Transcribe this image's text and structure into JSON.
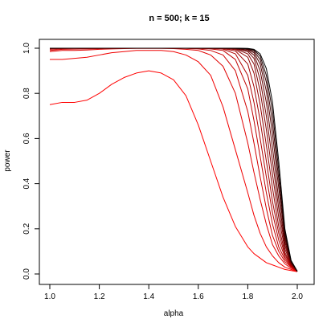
{
  "chart_data": {
    "type": "line",
    "title": "n = 500; k = 15",
    "xlabel": "alpha",
    "ylabel": "power",
    "xlim": [
      1.0,
      2.0
    ],
    "ylim": [
      0.0,
      1.0
    ],
    "xticks": [
      1.0,
      1.2,
      1.4,
      1.6,
      1.8,
      2.0
    ],
    "xtick_labels": [
      "1.0",
      "1.2",
      "1.4",
      "1.6",
      "1.8",
      "2.0"
    ],
    "yticks": [
      0.0,
      0.2,
      0.4,
      0.6,
      0.8,
      1.0
    ],
    "ytick_labels": [
      "0.0",
      "0.2",
      "0.4",
      "0.6",
      "0.8",
      "1.0"
    ],
    "grid": false,
    "x": [
      1.0,
      1.05,
      1.1,
      1.15,
      1.2,
      1.25,
      1.3,
      1.35,
      1.4,
      1.45,
      1.5,
      1.55,
      1.6,
      1.65,
      1.7,
      1.75,
      1.8,
      1.825,
      1.85,
      1.875,
      1.9,
      1.925,
      1.95,
      1.975,
      2.0
    ],
    "series": [
      {
        "color": "#ff0000",
        "values": [
          0.75,
          0.76,
          0.76,
          0.77,
          0.8,
          0.84,
          0.87,
          0.89,
          0.9,
          0.89,
          0.86,
          0.79,
          0.66,
          0.5,
          0.34,
          0.21,
          0.12,
          0.09,
          0.07,
          0.05,
          0.04,
          0.03,
          0.02,
          0.015,
          0.01
        ]
      },
      {
        "color": "#f00000",
        "values": [
          0.95,
          0.95,
          0.955,
          0.96,
          0.97,
          0.98,
          0.985,
          0.99,
          0.99,
          0.99,
          0.985,
          0.97,
          0.94,
          0.88,
          0.74,
          0.55,
          0.36,
          0.26,
          0.18,
          0.12,
          0.08,
          0.05,
          0.03,
          0.02,
          0.01
        ]
      },
      {
        "color": "#e00000",
        "values": [
          0.985,
          0.99,
          0.99,
          0.992,
          0.995,
          0.997,
          0.998,
          0.999,
          0.999,
          0.999,
          0.998,
          0.995,
          0.99,
          0.97,
          0.92,
          0.8,
          0.58,
          0.45,
          0.33,
          0.22,
          0.13,
          0.08,
          0.045,
          0.025,
          0.012
        ]
      },
      {
        "color": "#d00000",
        "values": [
          0.99,
          0.995,
          0.996,
          0.997,
          0.998,
          0.999,
          1.0,
          1.0,
          1.0,
          1.0,
          1.0,
          0.999,
          0.997,
          0.99,
          0.97,
          0.9,
          0.72,
          0.58,
          0.43,
          0.29,
          0.17,
          0.1,
          0.055,
          0.03,
          0.012
        ]
      },
      {
        "color": "#c00000",
        "values": [
          0.995,
          0.998,
          0.999,
          0.999,
          1.0,
          1.0,
          1.0,
          1.0,
          1.0,
          1.0,
          1.0,
          1.0,
          0.999,
          0.997,
          0.99,
          0.95,
          0.82,
          0.68,
          0.52,
          0.36,
          0.22,
          0.12,
          0.065,
          0.033,
          0.012
        ]
      },
      {
        "color": "#b00000",
        "values": [
          0.997,
          0.999,
          1.0,
          1.0,
          1.0,
          1.0,
          1.0,
          1.0,
          1.0,
          1.0,
          1.0,
          1.0,
          1.0,
          0.999,
          0.996,
          0.975,
          0.88,
          0.76,
          0.6,
          0.43,
          0.27,
          0.15,
          0.075,
          0.036,
          0.012
        ]
      },
      {
        "color": "#a00000",
        "values": [
          0.998,
          1.0,
          1.0,
          1.0,
          1.0,
          1.0,
          1.0,
          1.0,
          1.0,
          1.0,
          1.0,
          1.0,
          1.0,
          1.0,
          0.998,
          0.988,
          0.93,
          0.83,
          0.68,
          0.5,
          0.32,
          0.18,
          0.085,
          0.04,
          0.012
        ]
      },
      {
        "color": "#900000",
        "values": [
          0.999,
          1.0,
          1.0,
          1.0,
          1.0,
          1.0,
          1.0,
          1.0,
          1.0,
          1.0,
          1.0,
          1.0,
          1.0,
          1.0,
          0.999,
          0.994,
          0.96,
          0.89,
          0.75,
          0.57,
          0.38,
          0.21,
          0.095,
          0.042,
          0.012
        ]
      },
      {
        "color": "#800000",
        "values": [
          1.0,
          1.0,
          1.0,
          1.0,
          1.0,
          1.0,
          1.0,
          1.0,
          1.0,
          1.0,
          1.0,
          1.0,
          1.0,
          1.0,
          1.0,
          0.997,
          0.975,
          0.93,
          0.81,
          0.64,
          0.44,
          0.25,
          0.11,
          0.045,
          0.012
        ]
      },
      {
        "color": "#700000",
        "values": [
          1.0,
          1.0,
          1.0,
          1.0,
          1.0,
          1.0,
          1.0,
          1.0,
          1.0,
          1.0,
          1.0,
          1.0,
          1.0,
          1.0,
          1.0,
          0.998,
          0.985,
          0.955,
          0.86,
          0.7,
          0.5,
          0.29,
          0.125,
          0.048,
          0.012
        ]
      },
      {
        "color": "#600000",
        "values": [
          1.0,
          1.0,
          1.0,
          1.0,
          1.0,
          1.0,
          1.0,
          1.0,
          1.0,
          1.0,
          1.0,
          1.0,
          1.0,
          1.0,
          1.0,
          0.999,
          0.99,
          0.97,
          0.9,
          0.76,
          0.56,
          0.33,
          0.14,
          0.05,
          0.012
        ]
      },
      {
        "color": "#500000",
        "values": [
          1.0,
          1.0,
          1.0,
          1.0,
          1.0,
          1.0,
          1.0,
          1.0,
          1.0,
          1.0,
          1.0,
          1.0,
          1.0,
          1.0,
          1.0,
          1.0,
          0.994,
          0.98,
          0.93,
          0.81,
          0.62,
          0.38,
          0.155,
          0.052,
          0.012
        ]
      },
      {
        "color": "#380000",
        "values": [
          1.0,
          1.0,
          1.0,
          1.0,
          1.0,
          1.0,
          1.0,
          1.0,
          1.0,
          1.0,
          1.0,
          1.0,
          1.0,
          1.0,
          1.0,
          1.0,
          0.996,
          0.987,
          0.95,
          0.85,
          0.67,
          0.42,
          0.17,
          0.055,
          0.012
        ]
      },
      {
        "color": "#200000",
        "values": [
          1.0,
          1.0,
          1.0,
          1.0,
          1.0,
          1.0,
          1.0,
          1.0,
          1.0,
          1.0,
          1.0,
          1.0,
          1.0,
          1.0,
          1.0,
          1.0,
          0.998,
          0.992,
          0.965,
          0.88,
          0.72,
          0.46,
          0.185,
          0.058,
          0.012
        ]
      },
      {
        "color": "#000000",
        "values": [
          1.0,
          1.0,
          1.0,
          1.0,
          1.0,
          1.0,
          1.0,
          1.0,
          1.0,
          1.0,
          1.0,
          1.0,
          1.0,
          1.0,
          1.0,
          1.0,
          0.999,
          0.995,
          0.975,
          0.91,
          0.76,
          0.5,
          0.2,
          0.06,
          0.012
        ]
      }
    ]
  }
}
